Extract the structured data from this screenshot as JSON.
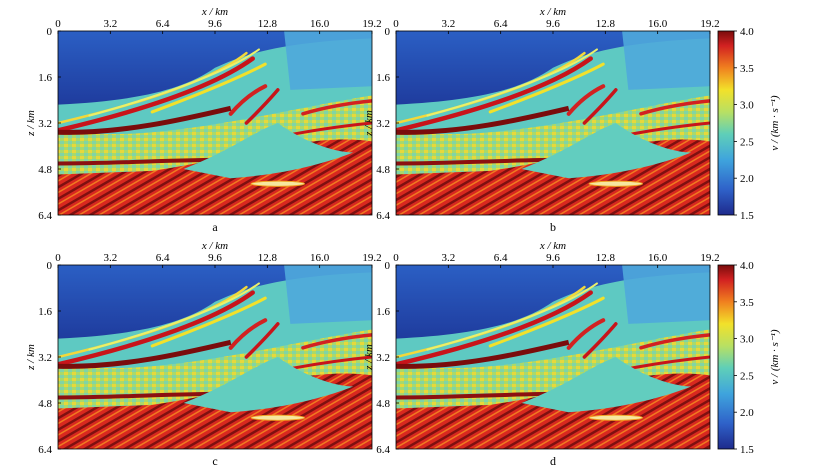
{
  "figure": {
    "x_axis": {
      "label": "x / km",
      "ticks": [
        "0",
        "3.2",
        "6.4",
        "9.6",
        "12.8",
        "16.0",
        "19.2"
      ]
    },
    "z_axis": {
      "label": "z / km",
      "ticks": [
        "0",
        "1.6",
        "3.2",
        "4.8",
        "6.4"
      ]
    },
    "colorbar": {
      "label": "v / (km · s⁻¹)",
      "ticks": [
        "4.0",
        "3.5",
        "3.0",
        "2.5",
        "2.0",
        "1.5"
      ],
      "range": [
        1.5,
        4.0
      ],
      "colormap": [
        "#1e2a8c",
        "#2f62c9",
        "#3fa4dd",
        "#5fcfb8",
        "#b8e063",
        "#f2e12a",
        "#f0801f",
        "#d22121",
        "#7a0c0c"
      ]
    },
    "panels": [
      {
        "id": "a",
        "label": "a"
      },
      {
        "id": "b",
        "label": "b"
      },
      {
        "id": "c",
        "label": "c"
      },
      {
        "id": "d",
        "label": "d"
      }
    ]
  }
}
